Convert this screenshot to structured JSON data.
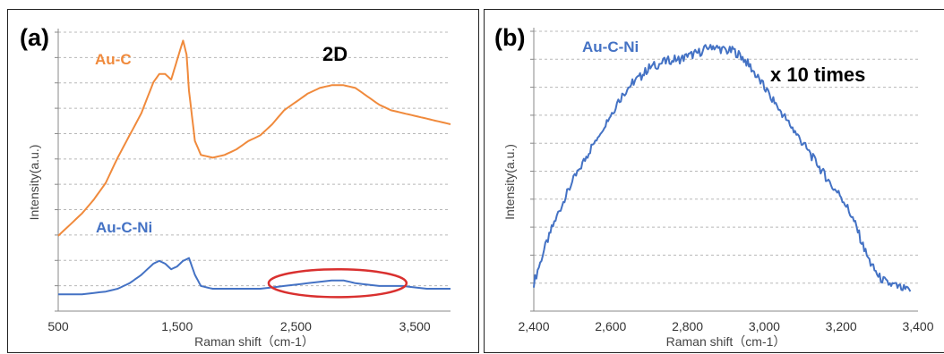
{
  "chart_data": [
    {
      "panel_label": "(a)",
      "type": "line",
      "xlabel": "Raman shift（cm-1）",
      "ylabel": "Intensity(a.u.)",
      "xlim": [
        500,
        3800
      ],
      "ylim": [
        0,
        100
      ],
      "xticks": [
        "500",
        "1,500",
        "2,500",
        "3,500"
      ],
      "xtick_values": [
        500,
        1500,
        2500,
        3500
      ],
      "grid": true,
      "annotation": "2D",
      "highlight_ellipse": {
        "x_center": 2850,
        "x_radius": 580,
        "y_center": 10,
        "y_radius": 5,
        "color": "#d9302f"
      },
      "series": [
        {
          "name": "Au-C",
          "color": "#f08a3c",
          "x": [
            500,
            600,
            700,
            800,
            900,
            1000,
            1100,
            1200,
            1300,
            1350,
            1400,
            1450,
            1500,
            1550,
            1580,
            1600,
            1650,
            1700,
            1800,
            1900,
            2000,
            2100,
            2200,
            2300,
            2400,
            2500,
            2600,
            2700,
            2800,
            2900,
            3000,
            3100,
            3200,
            3300,
            3400,
            3500,
            3600,
            3700,
            3800
          ],
          "y": [
            27,
            31,
            35,
            40,
            46,
            55,
            63,
            71,
            82,
            85,
            85,
            83,
            90,
            97,
            92,
            79,
            61,
            56,
            55,
            56,
            58,
            61,
            63,
            67,
            72,
            75,
            78,
            80,
            81,
            81,
            80,
            77,
            74,
            72,
            71,
            70,
            69,
            68,
            67
          ]
        },
        {
          "name": "Au-C-Ni",
          "color": "#4472c4",
          "x": [
            500,
            700,
            900,
            1000,
            1100,
            1200,
            1300,
            1350,
            1400,
            1450,
            1500,
            1550,
            1600,
            1650,
            1700,
            1800,
            2000,
            2200,
            2400,
            2600,
            2800,
            2900,
            3000,
            3200,
            3400,
            3600,
            3800
          ],
          "y": [
            6,
            6,
            7,
            8,
            10,
            13,
            17,
            18,
            17,
            15,
            16,
            18,
            19,
            13,
            9,
            8,
            8,
            8,
            9,
            10,
            11,
            11,
            10,
            9,
            9,
            8,
            8
          ]
        }
      ]
    },
    {
      "panel_label": "(b)",
      "type": "line",
      "xlabel": "Raman shift（cm-1）",
      "ylabel": "Intensity(a.u.)",
      "xlim": [
        2400,
        3400
      ],
      "ylim": [
        0,
        100
      ],
      "xticks": [
        "2,400",
        "2,600",
        "2,800",
        "3,000",
        "3,200",
        "3,400"
      ],
      "xtick_values": [
        2400,
        2600,
        2800,
        3000,
        3200,
        3400
      ],
      "grid": true,
      "annotation": "x 10 times",
      "series": [
        {
          "name": "Au-C-Ni",
          "color": "#4472c4",
          "x": [
            2400,
            2420,
            2440,
            2460,
            2480,
            2500,
            2520,
            2540,
            2560,
            2580,
            2600,
            2620,
            2640,
            2660,
            2680,
            2700,
            2720,
            2740,
            2760,
            2780,
            2800,
            2820,
            2840,
            2860,
            2880,
            2900,
            2920,
            2940,
            2960,
            2980,
            3000,
            3020,
            3040,
            3060,
            3080,
            3100,
            3120,
            3140,
            3160,
            3180,
            3200,
            3220,
            3240,
            3260,
            3280,
            3300,
            3320,
            3340,
            3360,
            3380
          ],
          "y": [
            10,
            19,
            27,
            34,
            40,
            46,
            51,
            56,
            61,
            66,
            70,
            75,
            79,
            82,
            84,
            87,
            88,
            89,
            90,
            90,
            91,
            92,
            93,
            95,
            94,
            93,
            93,
            91,
            88,
            84,
            80,
            76,
            72,
            68,
            64,
            60,
            56,
            52,
            48,
            44,
            41,
            36,
            30,
            22,
            16,
            12,
            10,
            9,
            8,
            7
          ]
        }
      ]
    }
  ]
}
